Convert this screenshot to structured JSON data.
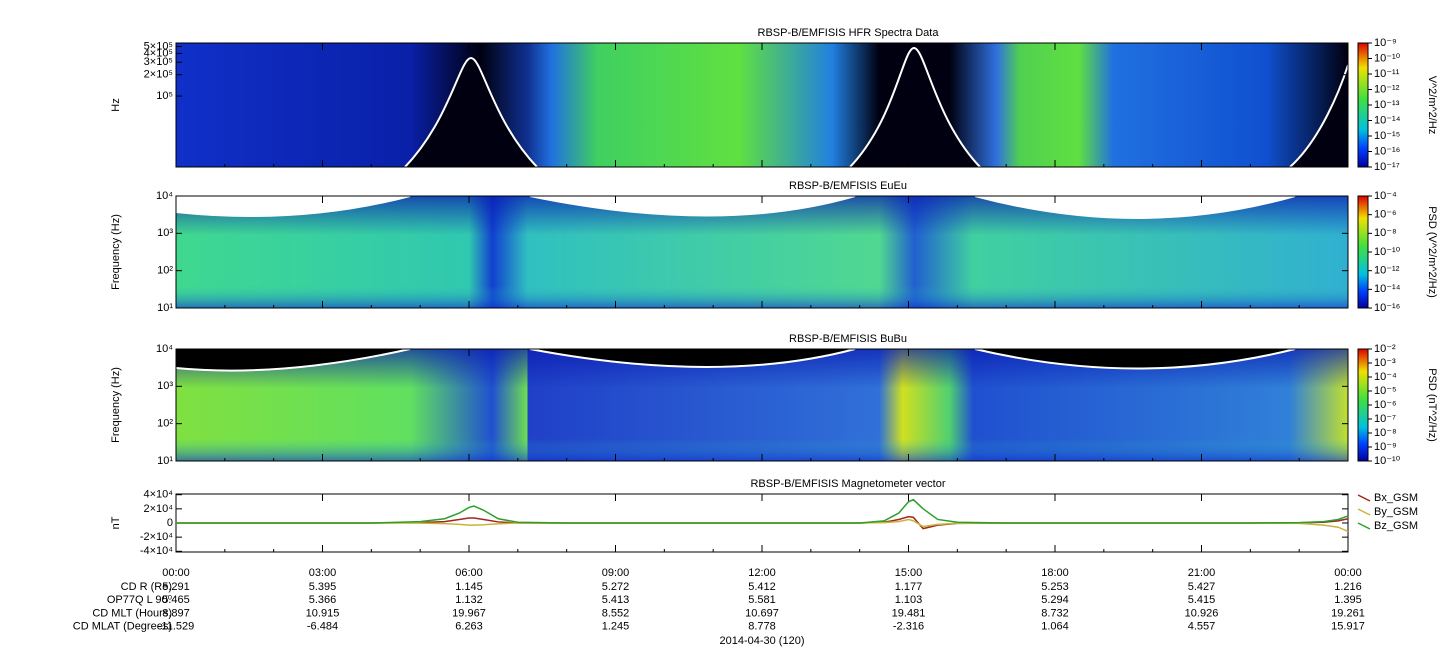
{
  "chart_data": [
    {
      "type": "spectrogram",
      "title": "RBSP-B/EMFISIS  HFR Spectra Data",
      "ylabel": "Hz",
      "log": true,
      "ylim": [
        10000,
        560000
      ],
      "yticks": [
        {
          "value": 100000,
          "label": "10⁵"
        },
        {
          "value": 200000,
          "label": "2×10⁵"
        },
        {
          "value": 300000,
          "label": "3×10⁵"
        },
        {
          "value": 400000,
          "label": "4×10⁵"
        },
        {
          "value": 500000,
          "label": "5×10⁵"
        }
      ],
      "colorbar": {
        "label": "V^2/m^2/Hz",
        "log": true,
        "lim": [
          1e-17,
          1e-09
        ],
        "ticks": [
          {
            "value": 1e-09,
            "label": "10⁻⁹"
          },
          {
            "value": 1e-10,
            "label": "10⁻¹⁰"
          },
          {
            "value": 1e-11,
            "label": "10⁻¹¹"
          },
          {
            "value": 1e-12,
            "label": "10⁻¹²"
          },
          {
            "value": 1e-13,
            "label": "10⁻¹³"
          },
          {
            "value": 1e-14,
            "label": "10⁻¹⁴"
          },
          {
            "value": 1e-15,
            "label": "10⁻¹⁵"
          },
          {
            "value": 1e-16,
            "label": "10⁻¹⁶"
          },
          {
            "value": 1e-17,
            "label": "10⁻¹⁷"
          }
        ]
      }
    },
    {
      "type": "spectrogram",
      "title": "RBSP-B/EMFISIS  EuEu",
      "ylabel": "Frequency (Hz)",
      "log": true,
      "ylim": [
        10,
        10000
      ],
      "yticks": [
        {
          "value": 10,
          "label": "10¹"
        },
        {
          "value": 100,
          "label": "10²"
        },
        {
          "value": 1000,
          "label": "10³"
        },
        {
          "value": 10000,
          "label": "10⁴"
        }
      ],
      "colorbar": {
        "label": "PSD (V^2/m^2/Hz)",
        "log": true,
        "lim": [
          1e-16,
          0.0001
        ],
        "ticks": [
          {
            "value": 0.0001,
            "label": "10⁻⁴"
          },
          {
            "value": 1e-06,
            "label": "10⁻⁶"
          },
          {
            "value": 1e-08,
            "label": "10⁻⁸"
          },
          {
            "value": 1e-10,
            "label": "10⁻¹⁰"
          },
          {
            "value": 1e-12,
            "label": "10⁻¹²"
          },
          {
            "value": 1e-14,
            "label": "10⁻¹⁴"
          },
          {
            "value": 1e-16,
            "label": "10⁻¹⁶"
          }
        ]
      }
    },
    {
      "type": "spectrogram",
      "title": "RBSP-B/EMFISIS  BuBu",
      "ylabel": "Frequency (Hz)",
      "log": true,
      "ylim": [
        10,
        10000
      ],
      "yticks": [
        {
          "value": 10,
          "label": "10¹"
        },
        {
          "value": 100,
          "label": "10²"
        },
        {
          "value": 1000,
          "label": "10³"
        },
        {
          "value": 10000,
          "label": "10⁴"
        }
      ],
      "colorbar": {
        "label": "PSD (nT^2/Hz)",
        "log": true,
        "lim": [
          1e-10,
          0.01
        ],
        "ticks": [
          {
            "value": 0.01,
            "label": "10⁻²"
          },
          {
            "value": 0.001,
            "label": "10⁻³"
          },
          {
            "value": 0.0001,
            "label": "10⁻⁴"
          },
          {
            "value": 1e-05,
            "label": "10⁻⁵"
          },
          {
            "value": 1e-06,
            "label": "10⁻⁶"
          },
          {
            "value": 1e-07,
            "label": "10⁻⁷"
          },
          {
            "value": 1e-08,
            "label": "10⁻⁸"
          },
          {
            "value": 1e-09,
            "label": "10⁻⁹"
          },
          {
            "value": 1e-10,
            "label": "10⁻¹⁰"
          }
        ]
      }
    },
    {
      "type": "line",
      "title": "RBSP-B/EMFISIS  Magnetometer vector",
      "ylabel": "nT",
      "xlabel": "2014-04-30 (120)",
      "xlim": [
        0,
        24
      ],
      "xticks": [
        {
          "value": 0,
          "label": "00:00"
        },
        {
          "value": 3,
          "label": "03:00"
        },
        {
          "value": 6,
          "label": "06:00"
        },
        {
          "value": 9,
          "label": "09:00"
        },
        {
          "value": 12,
          "label": "12:00"
        },
        {
          "value": 15,
          "label": "15:00"
        },
        {
          "value": 18,
          "label": "18:00"
        },
        {
          "value": 21,
          "label": "21:00"
        },
        {
          "value": 24,
          "label": "00:00"
        }
      ],
      "ylim": [
        -41000,
        41000
      ],
      "yticks": [
        {
          "value": -40000,
          "label": "-4×10⁴"
        },
        {
          "value": -20000,
          "label": "-2×10⁴"
        },
        0,
        {
          "value": 20000,
          "label": "2×10⁴"
        },
        {
          "value": 40000,
          "label": "4×10⁴"
        }
      ],
      "x": [
        0,
        1,
        2,
        3,
        4,
        5,
        5.5,
        5.8,
        6.0,
        6.1,
        6.3,
        6.6,
        7,
        8,
        9,
        10,
        11,
        12,
        13,
        14,
        14.5,
        14.8,
        15.0,
        15.1,
        15.3,
        15.6,
        16,
        17,
        18,
        19,
        20,
        21,
        22,
        23,
        23.5,
        23.8,
        24
      ],
      "series": [
        {
          "name": "Bx_GSM",
          "color": "#a0261e",
          "values": [
            0,
            0,
            0,
            0,
            0,
            500,
            2000,
            5000,
            7000,
            7000,
            5000,
            1500,
            0,
            0,
            0,
            0,
            0,
            0,
            0,
            0,
            1000,
            5000,
            9000,
            8000,
            -8000,
            -3000,
            -500,
            0,
            0,
            0,
            0,
            0,
            0,
            300,
            1000,
            3000,
            6000
          ]
        },
        {
          "name": "By_GSM",
          "color": "#c8b43c",
          "values": [
            0,
            0,
            0,
            0,
            0,
            -200,
            -800,
            -2000,
            -3000,
            -3000,
            -2500,
            -1000,
            0,
            0,
            0,
            0,
            0,
            0,
            0,
            0,
            500,
            2000,
            5000,
            3000,
            -5000,
            -2000,
            -300,
            0,
            0,
            0,
            0,
            0,
            0,
            -500,
            -3000,
            -6000,
            -12000
          ]
        },
        {
          "name": "Bz_GSM",
          "color": "#2ca02c",
          "values": [
            0,
            0,
            0,
            0,
            0,
            2000,
            6000,
            14000,
            22000,
            24000,
            18000,
            6000,
            1000,
            0,
            0,
            0,
            0,
            0,
            0,
            0,
            3000,
            14000,
            30000,
            33000,
            20000,
            5000,
            1000,
            0,
            0,
            0,
            0,
            0,
            0,
            500,
            2000,
            5000,
            10000
          ]
        }
      ]
    }
  ],
  "ephemeris": {
    "rows": [
      {
        "label": "CD R (Re)",
        "values": [
          5.291,
          5.395,
          1.145,
          5.272,
          5.412,
          1.177,
          5.253,
          5.427,
          1.216
        ]
      },
      {
        "label": "OP77Q L 90⁰",
        "values": [
          5.465,
          5.366,
          1.132,
          5.413,
          5.581,
          1.103,
          5.294,
          5.415,
          1.395
        ]
      },
      {
        "label": "CD MLT (Hours)",
        "values": [
          8.897,
          10.915,
          19.967,
          8.552,
          10.697,
          19.481,
          8.732,
          10.926,
          19.261
        ]
      },
      {
        "label": "CD MLAT (Degrees)",
        "values": [
          -11.529,
          -6.484,
          6.263,
          1.245,
          8.778,
          -2.316,
          1.064,
          4.557,
          15.917
        ]
      }
    ]
  }
}
